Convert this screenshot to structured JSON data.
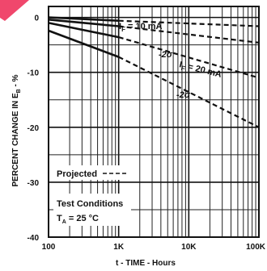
{
  "chart_data": {
    "type": "line",
    "xlabel": "t - TIME - Hours",
    "ylabel": "PERCENT CHANGE IN E",
    "ylabel_sub": "B",
    "ylabel_unit": " - %",
    "x_scale": "log",
    "xlim": [
      100,
      100000
    ],
    "ylim": [
      -40,
      2
    ],
    "x_ticks": [
      {
        "value": 100,
        "label": "100"
      },
      {
        "value": 1000,
        "label": "1K"
      },
      {
        "value": 10000,
        "label": "10K"
      },
      {
        "value": 100000,
        "label": "100K"
      }
    ],
    "y_ticks": [
      {
        "value": 0,
        "label": "0"
      },
      {
        "value": -10,
        "label": "-10"
      },
      {
        "value": -20,
        "label": "-20"
      },
      {
        "value": -30,
        "label": "-30"
      },
      {
        "value": -40,
        "label": "-40"
      }
    ],
    "grid": true,
    "series": [
      {
        "key": "s1",
        "measured_x": [
          100,
          1000
        ],
        "measured_y": [
          0,
          -0.6
        ],
        "projected_x": [
          1000,
          100000
        ],
        "projected_y": [
          -0.6,
          -1.6
        ]
      },
      {
        "key": "s2",
        "measured_x": [
          100,
          1000
        ],
        "measured_y": [
          -0.4,
          -1.6
        ],
        "projected_x": [
          1000,
          100000
        ],
        "projected_y": [
          -1.6,
          -4.6
        ]
      },
      {
        "key": "s3",
        "measured_x": [
          100,
          1000
        ],
        "measured_y": [
          -1.0,
          -3.6
        ],
        "projected_x": [
          1000,
          100000
        ],
        "projected_y": [
          -3.6,
          -11.0
        ]
      },
      {
        "key": "s4",
        "measured_x": [
          100,
          1000
        ],
        "measured_y": [
          -2.4,
          -7.2
        ],
        "projected_x": [
          1000,
          100000
        ],
        "projected_y": [
          -7.2,
          -20.0
        ]
      }
    ],
    "annotations": {
      "if10": "I",
      "if10_sub": "F",
      "if10_rest": " = 10 mA",
      "sigma1": "-2σ",
      "if20": "I",
      "if20_sub": "F",
      "if20_rest": " = 20 mA",
      "sigma2": "-2σ",
      "legend_projected": "Projected",
      "test_conditions": "Test Conditions",
      "ta": "T",
      "ta_sub": "A",
      "ta_rest": " = 25 °C"
    }
  }
}
